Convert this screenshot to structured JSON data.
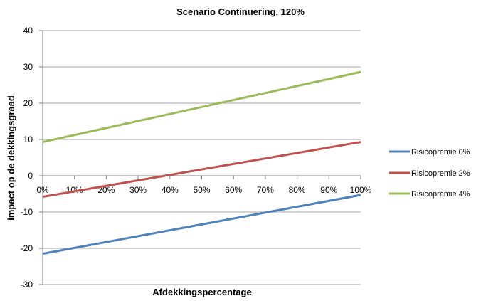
{
  "chart_data": {
    "type": "line",
    "title": "Scenario Continuering, 120%",
    "xlabel": "Afdekkingspercentage",
    "ylabel": "impact op de dekkingsgraad",
    "x": [
      0,
      100
    ],
    "categories": [
      "0%",
      "10%",
      "20%",
      "30%",
      "40%",
      "50%",
      "60%",
      "70%",
      "80%",
      "90%",
      "100%"
    ],
    "ylim": [
      -30,
      40
    ],
    "yticks": [
      "-30",
      "-20",
      "-10",
      "0",
      "10",
      "20",
      "30",
      "40"
    ],
    "grid": true,
    "legend_position": "right",
    "series": [
      {
        "name": "Risicopremie 0%",
        "values": [
          -21.5,
          -5.3
        ],
        "color": "#4F81BD"
      },
      {
        "name": "Risicopremie 2%",
        "values": [
          -5.8,
          9.3
        ],
        "color": "#C0504D"
      },
      {
        "name": "Risicopremie 4%",
        "values": [
          9.3,
          28.6
        ],
        "color": "#9BBB59"
      }
    ]
  }
}
